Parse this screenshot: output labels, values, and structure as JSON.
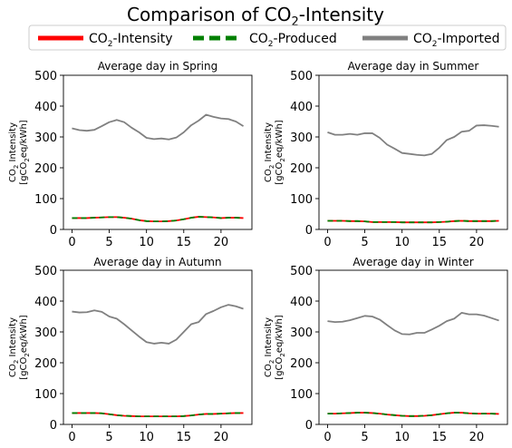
{
  "figure": {
    "title_main": "Comparison of CO",
    "title_sub": "2",
    "title_tail": "-Intensity"
  },
  "legend": {
    "placement": "top",
    "entries": [
      {
        "pre": "CO",
        "sub": "2",
        "post": "-Intensity",
        "color": "#ff0000",
        "style": "solid"
      },
      {
        "pre": "CO",
        "sub": "2",
        "post": "-Produced",
        "color": "#008000",
        "style": "dashed"
      },
      {
        "pre": "CO",
        "sub": "2",
        "post": "-Imported",
        "color": "#808080",
        "style": "solid"
      }
    ]
  },
  "ylabel": {
    "line1_pre": "CO",
    "line1_sub": "2",
    "line1_post": " Intensity",
    "line2_pre": "[gCO",
    "line2_sub": "2",
    "line2_post": "eq/kWh]"
  },
  "chart_data": [
    {
      "type": "line",
      "title": "Average day in Spring",
      "x": [
        0,
        1,
        2,
        3,
        4,
        5,
        6,
        7,
        8,
        9,
        10,
        11,
        12,
        13,
        14,
        15,
        16,
        17,
        18,
        19,
        20,
        21,
        22,
        23
      ],
      "xticks": [
        0,
        5,
        10,
        15,
        20
      ],
      "yticks": [
        0,
        100,
        200,
        300,
        400,
        500
      ],
      "xlim": [
        -1.15,
        24.15
      ],
      "ylim": [
        0,
        500
      ],
      "series": [
        {
          "key": "imported",
          "color": "#808080",
          "values": [
            328,
            322,
            320,
            323,
            335,
            348,
            355,
            348,
            330,
            315,
            297,
            293,
            295,
            292,
            298,
            315,
            338,
            353,
            372,
            365,
            360,
            358,
            350,
            335
          ]
        },
        {
          "key": "intensity",
          "color": "#ff0000",
          "values": [
            37,
            37,
            37,
            38,
            39,
            40,
            40,
            38,
            35,
            30,
            27,
            26,
            26,
            27,
            29,
            33,
            38,
            41,
            40,
            39,
            37,
            38,
            38,
            37
          ]
        },
        {
          "key": "produced",
          "color": "#008000",
          "values": [
            37,
            37,
            37,
            38,
            39,
            40,
            40,
            38,
            35,
            30,
            27,
            26,
            26,
            27,
            29,
            33,
            38,
            41,
            40,
            39,
            37,
            38,
            38,
            37
          ]
        }
      ]
    },
    {
      "type": "line",
      "title": "Average day in Summer",
      "x": [
        0,
        1,
        2,
        3,
        4,
        5,
        6,
        7,
        8,
        9,
        10,
        11,
        12,
        13,
        14,
        15,
        16,
        17,
        18,
        19,
        20,
        21,
        22,
        23
      ],
      "xticks": [
        0,
        5,
        10,
        15,
        20
      ],
      "yticks": [
        0,
        100,
        200,
        300,
        400,
        500
      ],
      "xlim": [
        -1.15,
        24.15
      ],
      "ylim": [
        0,
        500
      ],
      "series": [
        {
          "key": "imported",
          "color": "#808080",
          "values": [
            315,
            307,
            307,
            310,
            307,
            312,
            312,
            297,
            275,
            262,
            248,
            245,
            242,
            240,
            245,
            265,
            290,
            300,
            317,
            320,
            337,
            338,
            336,
            333
          ]
        },
        {
          "key": "intensity",
          "color": "#ff0000",
          "values": [
            28,
            28,
            28,
            27,
            27,
            26,
            24,
            24,
            24,
            24,
            23,
            23,
            23,
            23,
            23,
            24,
            25,
            27,
            28,
            27,
            27,
            27,
            27,
            28
          ]
        },
        {
          "key": "produced",
          "color": "#008000",
          "values": [
            28,
            28,
            28,
            27,
            27,
            26,
            24,
            24,
            24,
            24,
            23,
            23,
            23,
            23,
            23,
            24,
            25,
            27,
            28,
            27,
            27,
            27,
            27,
            28
          ]
        }
      ]
    },
    {
      "type": "line",
      "title": "Average day in Autumn",
      "x": [
        0,
        1,
        2,
        3,
        4,
        5,
        6,
        7,
        8,
        9,
        10,
        11,
        12,
        13,
        14,
        15,
        16,
        17,
        18,
        19,
        20,
        21,
        22,
        23
      ],
      "xticks": [
        0,
        5,
        10,
        15,
        20
      ],
      "yticks": [
        0,
        100,
        200,
        300,
        400,
        500
      ],
      "xlim": [
        -1.15,
        24.15
      ],
      "ylim": [
        0,
        500
      ],
      "series": [
        {
          "key": "imported",
          "color": "#808080",
          "values": [
            366,
            363,
            364,
            370,
            365,
            350,
            343,
            325,
            305,
            285,
            267,
            262,
            265,
            262,
            275,
            300,
            325,
            332,
            358,
            368,
            380,
            388,
            383,
            375
          ]
        },
        {
          "key": "intensity",
          "color": "#ff0000",
          "values": [
            37,
            37,
            37,
            37,
            36,
            33,
            30,
            28,
            27,
            26,
            26,
            26,
            26,
            26,
            26,
            27,
            29,
            32,
            34,
            34,
            35,
            36,
            37,
            37
          ]
        },
        {
          "key": "produced",
          "color": "#008000",
          "values": [
            37,
            37,
            37,
            37,
            36,
            33,
            30,
            28,
            27,
            26,
            26,
            26,
            26,
            26,
            26,
            27,
            29,
            32,
            34,
            34,
            35,
            36,
            37,
            37
          ]
        }
      ]
    },
    {
      "type": "line",
      "title": "Average day in Winter",
      "x": [
        0,
        1,
        2,
        3,
        4,
        5,
        6,
        7,
        8,
        9,
        10,
        11,
        12,
        13,
        14,
        15,
        16,
        17,
        18,
        19,
        20,
        21,
        22,
        23
      ],
      "xticks": [
        0,
        5,
        10,
        15,
        20
      ],
      "yticks": [
        0,
        100,
        200,
        300,
        400,
        500
      ],
      "xlim": [
        -1.15,
        24.15
      ],
      "ylim": [
        0,
        500
      ],
      "series": [
        {
          "key": "imported",
          "color": "#808080",
          "values": [
            335,
            332,
            333,
            338,
            345,
            352,
            350,
            340,
            322,
            305,
            293,
            292,
            297,
            297,
            308,
            320,
            335,
            343,
            362,
            357,
            357,
            353,
            345,
            337
          ]
        },
        {
          "key": "intensity",
          "color": "#ff0000",
          "values": [
            35,
            35,
            36,
            37,
            38,
            38,
            37,
            35,
            32,
            30,
            28,
            27,
            27,
            28,
            30,
            33,
            36,
            38,
            38,
            36,
            35,
            35,
            35,
            34
          ]
        },
        {
          "key": "produced",
          "color": "#008000",
          "values": [
            35,
            35,
            36,
            37,
            38,
            38,
            37,
            35,
            32,
            30,
            28,
            27,
            27,
            28,
            30,
            33,
            36,
            38,
            38,
            36,
            35,
            35,
            35,
            34
          ]
        }
      ]
    }
  ]
}
